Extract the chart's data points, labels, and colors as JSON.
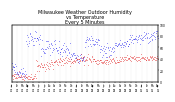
{
  "title": "Milwaukee Weather Outdoor Humidity\nvs Temperature\nEvery 5 Minutes",
  "title_fontsize": 3.5,
  "background_color": "#ffffff",
  "humidity_color": "#0000ee",
  "temp_color": "#dd0000",
  "grid_color": "#bbbbbb",
  "n_points": 300,
  "x_tick_fontsize": 1.8,
  "y_tick_fontsize": 2.2,
  "ylim": [
    0,
    100
  ],
  "xlim": [
    0,
    299
  ],
  "n_grid_lines": 28,
  "n_x_ticks": 28,
  "hum_segments": [
    {
      "start": 0,
      "end": 10,
      "base": 25,
      "noise": 5
    },
    {
      "start": 10,
      "end": 30,
      "base": 15,
      "noise": 4
    },
    {
      "start": 30,
      "end": 60,
      "base": 75,
      "noise": 6
    },
    {
      "start": 60,
      "end": 90,
      "base": 60,
      "noise": 8
    },
    {
      "start": 90,
      "end": 120,
      "base": 55,
      "noise": 7
    },
    {
      "start": 120,
      "end": 150,
      "base": 45,
      "noise": 6
    },
    {
      "start": 150,
      "end": 180,
      "base": 70,
      "noise": 5
    },
    {
      "start": 180,
      "end": 210,
      "base": 55,
      "noise": 6
    },
    {
      "start": 210,
      "end": 240,
      "base": 65,
      "noise": 5
    },
    {
      "start": 240,
      "end": 270,
      "base": 75,
      "noise": 5
    },
    {
      "start": 270,
      "end": 300,
      "base": 80,
      "noise": 5
    }
  ],
  "temp_segments": [
    {
      "start": 0,
      "end": 20,
      "base": 10,
      "noise": 3
    },
    {
      "start": 20,
      "end": 50,
      "base": 8,
      "noise": 3
    },
    {
      "start": 50,
      "end": 80,
      "base": 28,
      "noise": 4
    },
    {
      "start": 80,
      "end": 110,
      "base": 35,
      "noise": 4
    },
    {
      "start": 110,
      "end": 140,
      "base": 38,
      "noise": 4
    },
    {
      "start": 140,
      "end": 170,
      "base": 40,
      "noise": 4
    },
    {
      "start": 170,
      "end": 200,
      "base": 35,
      "noise": 3
    },
    {
      "start": 200,
      "end": 230,
      "base": 38,
      "noise": 3
    },
    {
      "start": 230,
      "end": 260,
      "base": 42,
      "noise": 3
    },
    {
      "start": 260,
      "end": 300,
      "base": 40,
      "noise": 3
    }
  ],
  "y_ticks": [
    0,
    20,
    40,
    60,
    80,
    100
  ],
  "y_tick_labels": [
    "0",
    "20",
    "40",
    "60",
    "80",
    "100"
  ]
}
